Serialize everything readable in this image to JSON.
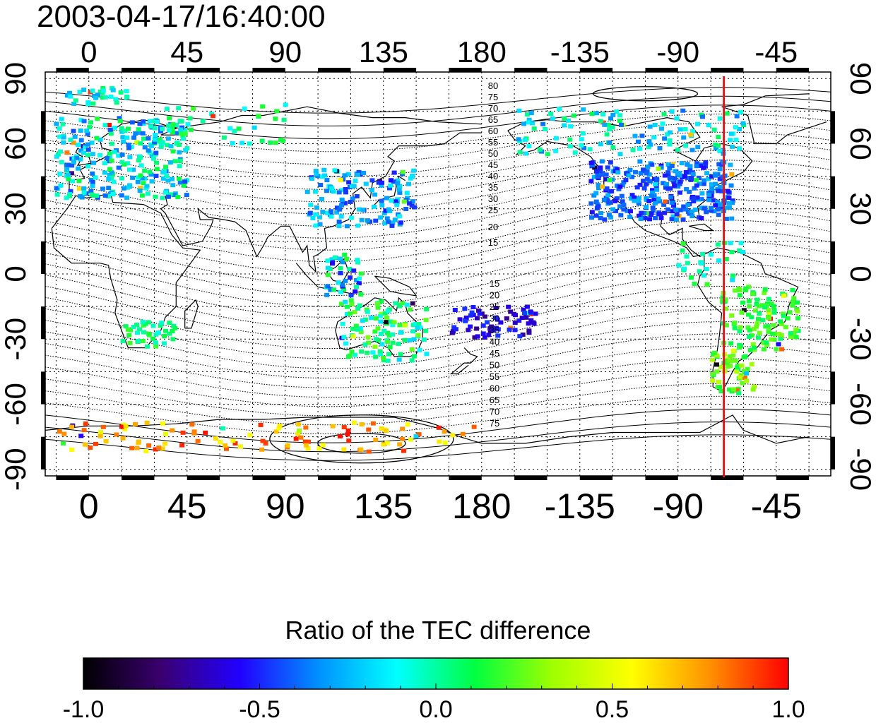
{
  "title": "2003-04-17/16:40:00",
  "map": {
    "lon_ticks_top": [
      "0",
      "45",
      "90",
      "135",
      "180",
      "-135",
      "-90",
      "-45"
    ],
    "lon_ticks_bottom": [
      "0",
      "45",
      "90",
      "135",
      "180",
      "-135",
      "-90",
      "-45"
    ],
    "lat_ticks_left": [
      "90",
      "60",
      "30",
      "0",
      "-30",
      "-60",
      "-90"
    ],
    "lat_ticks_right": [
      "90",
      "60",
      "30",
      "0",
      "-30",
      "-60",
      "-90"
    ],
    "lon_tick_values": [
      0,
      45,
      90,
      135,
      180,
      -135,
      -90,
      -45
    ],
    "lat_tick_values": [
      90,
      60,
      30,
      0,
      -30,
      -60,
      -90
    ],
    "lon_range": [
      -20,
      340
    ],
    "lat_range": [
      -93,
      93
    ],
    "contour_labels_north": [
      "80",
      "75",
      "70",
      "65",
      "60",
      "55",
      "50",
      "45",
      "40",
      "35",
      "30",
      "25",
      "20",
      "15"
    ],
    "contour_labels_south": [
      "15",
      "20",
      "25",
      "30",
      "35",
      "40",
      "45",
      "50",
      "55",
      "60",
      "65",
      "70",
      "75"
    ],
    "terminator_longitude": -69,
    "terminator_color": "#e0141e"
  },
  "colorbar": {
    "title": "Ratio of the TEC difference",
    "tick_labels": [
      "-1.0",
      "-0.5",
      "0.0",
      "0.5",
      "1.0"
    ],
    "tick_values": [
      -1.0,
      -0.5,
      0.0,
      0.5,
      1.0
    ],
    "range": [
      -1.0,
      1.0
    ],
    "colors": [
      "#000000",
      "#3a0070",
      "#2200ff",
      "#0090ff",
      "#00ffff",
      "#00ff40",
      "#a0ff00",
      "#ffff00",
      "#ff9000",
      "#ff0000"
    ]
  }
}
